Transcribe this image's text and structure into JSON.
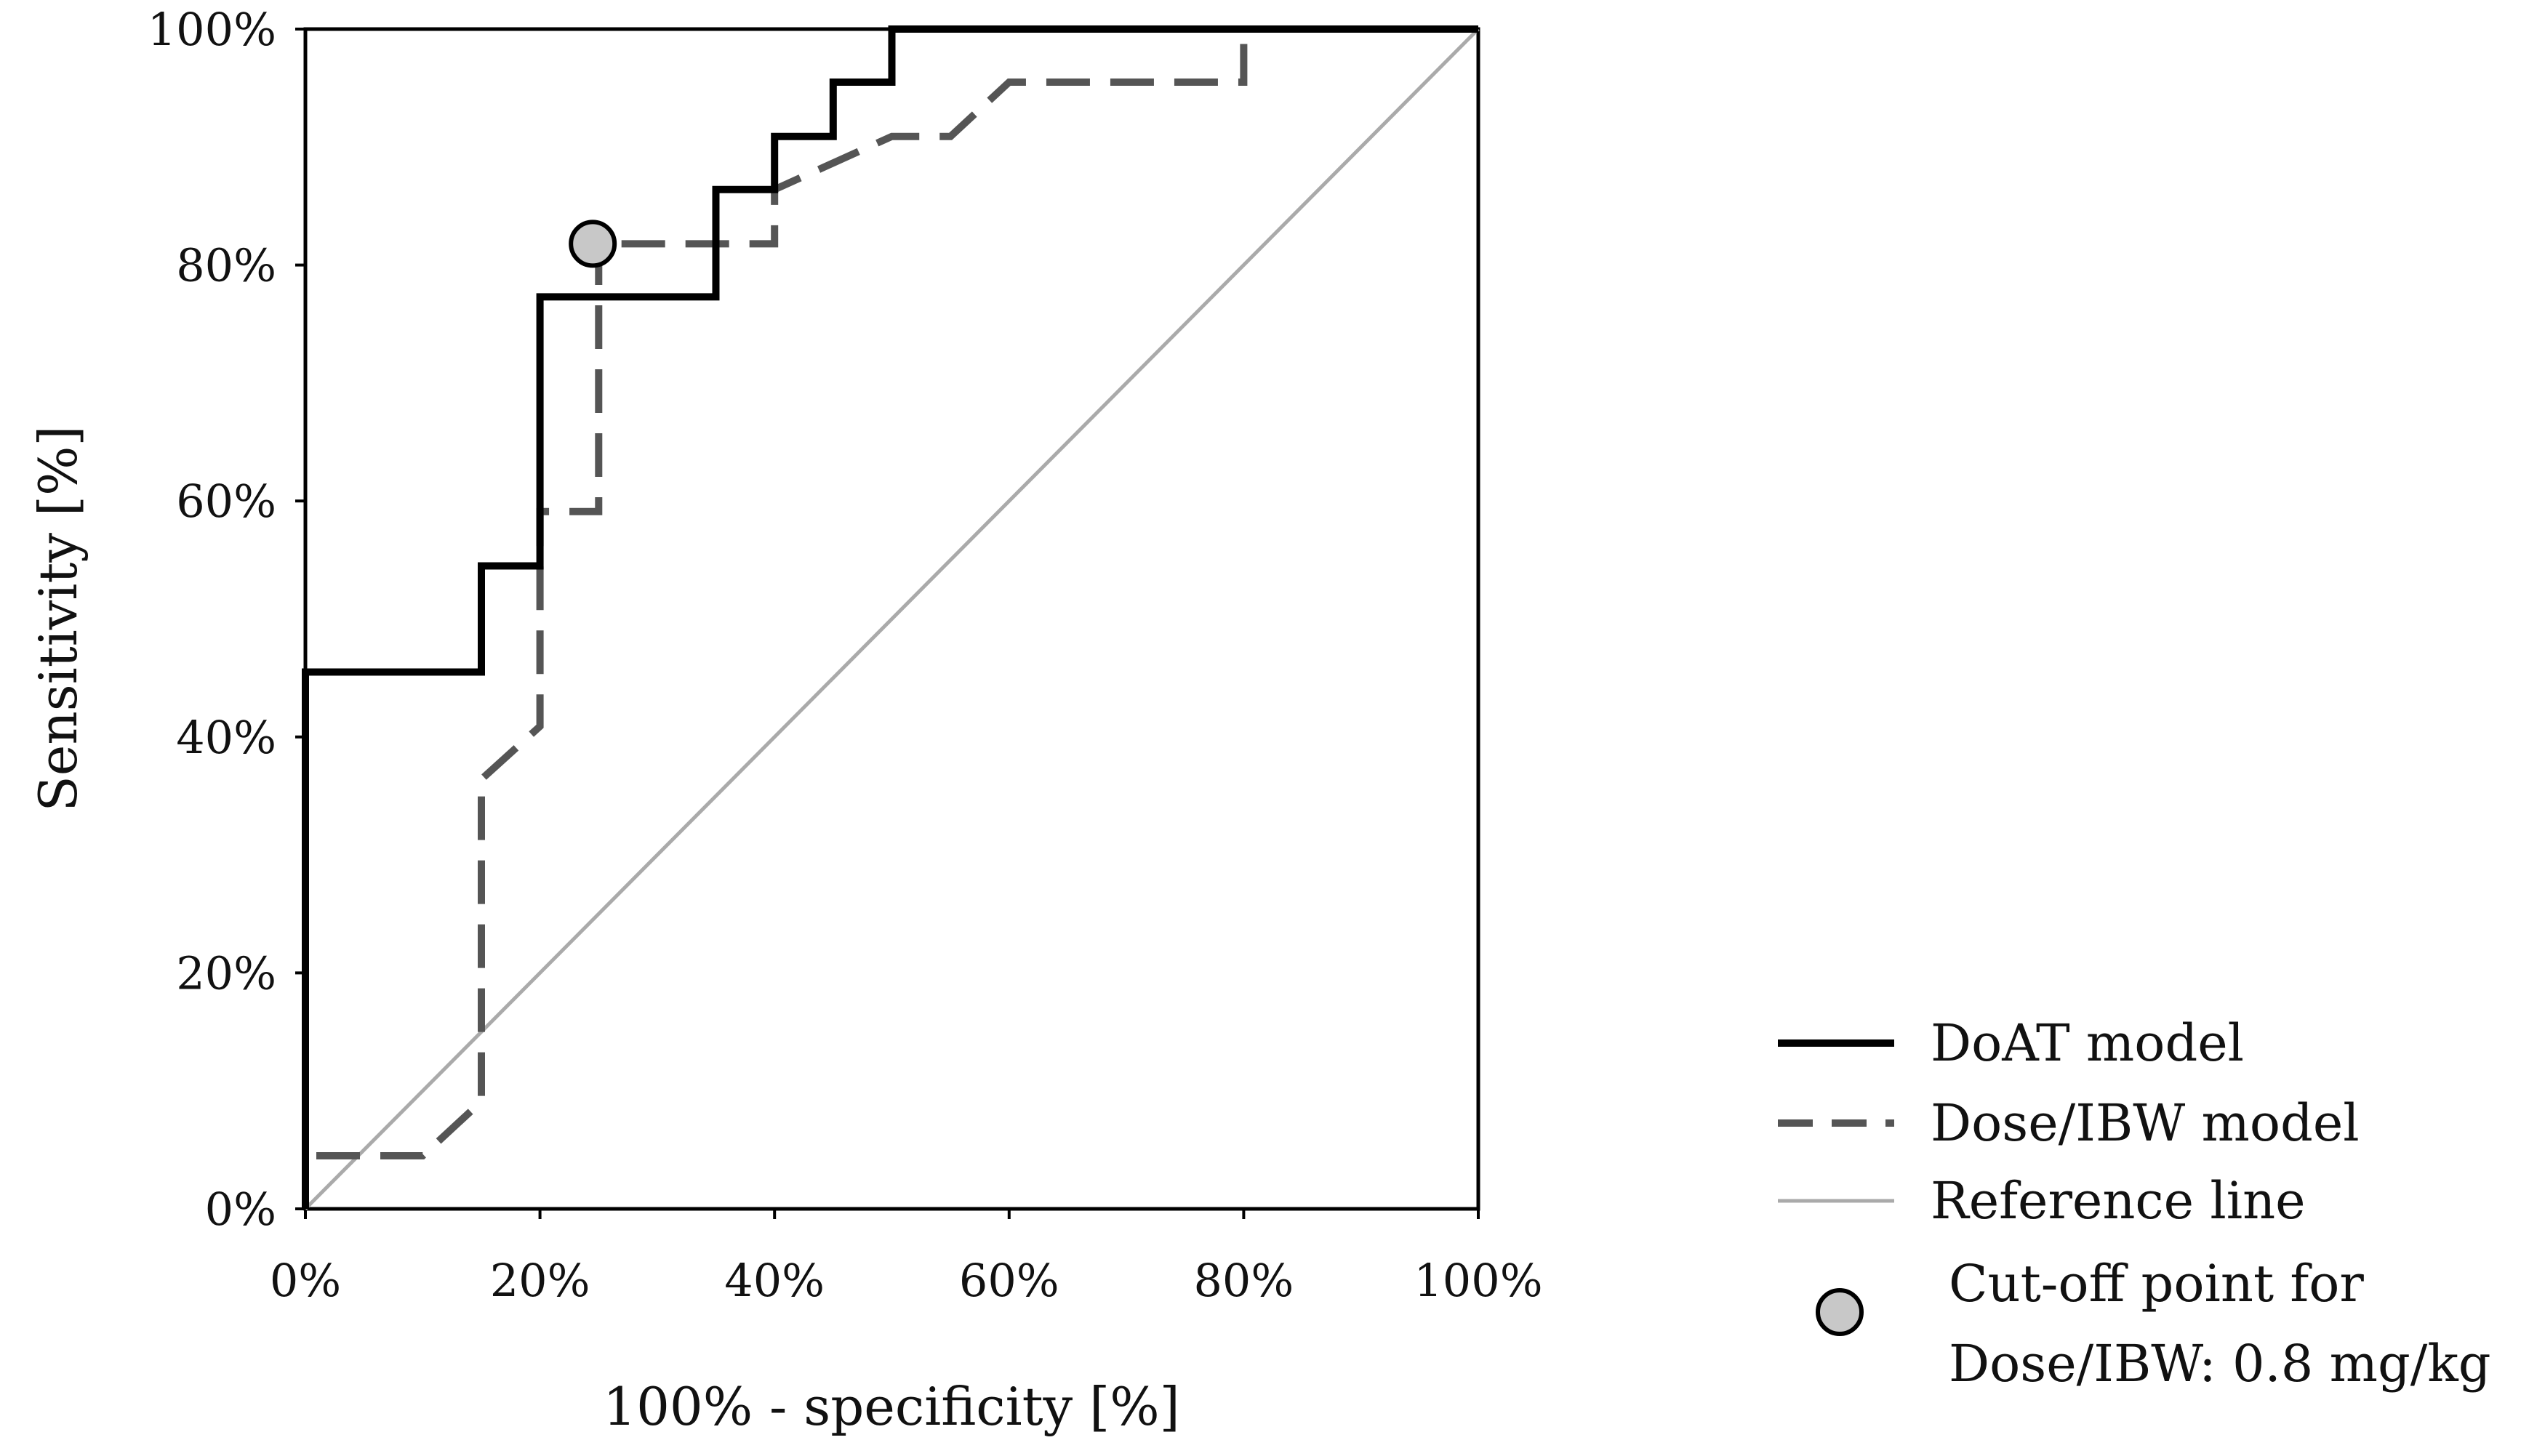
{
  "chart_data": {
    "type": "line",
    "title": "",
    "xlabel": "100% - specificity [%]",
    "ylabel": "Sensitivity [%]",
    "xlim": [
      0,
      100
    ],
    "ylim": [
      0,
      100
    ],
    "grid": false,
    "legend_position": "bottom-right outside",
    "x_ticks": [
      0,
      20,
      40,
      60,
      80,
      100
    ],
    "y_ticks": [
      0,
      20,
      40,
      60,
      80,
      100
    ],
    "x_tick_labels": [
      "0%",
      "20%",
      "40%",
      "60%",
      "80%",
      "100%"
    ],
    "y_tick_labels": [
      "0%",
      "20%",
      "40%",
      "60%",
      "80%",
      "100%"
    ],
    "series": [
      {
        "name": "DoAT model",
        "style": "solid",
        "color": "#000000",
        "x": [
          0,
          0,
          15,
          15,
          20,
          20,
          35,
          35,
          40,
          40,
          45,
          45,
          50,
          50,
          100
        ],
        "y": [
          0,
          45.5,
          45.5,
          54.5,
          54.5,
          77.3,
          77.3,
          86.4,
          86.4,
          90.9,
          90.9,
          95.5,
          95.5,
          100,
          100
        ]
      },
      {
        "name": "Dose/IBW model",
        "style": "dashed",
        "color": "#555555",
        "x": [
          0,
          0,
          10,
          15,
          15,
          20,
          20,
          25,
          25,
          40,
          40,
          50,
          55,
          60,
          80,
          80,
          100
        ],
        "y": [
          0,
          4.5,
          4.5,
          9.1,
          36.4,
          40.9,
          59.1,
          59.1,
          81.8,
          81.8,
          86.4,
          90.9,
          90.9,
          95.5,
          95.5,
          100,
          100
        ]
      },
      {
        "name": "Reference line",
        "style": "solid",
        "color": "#aaaaaa",
        "x": [
          0,
          100
        ],
        "y": [
          0,
          100
        ]
      }
    ],
    "annotations": [
      {
        "name": "Cut-off point for Dose/IBW: 0.8 mg/kg",
        "x": 24.5,
        "y": 81.8,
        "marker": "circle",
        "fill": "#c8c8c8"
      }
    ],
    "legend": [
      {
        "label": "DoAT model",
        "style": "solid",
        "color": "#000000"
      },
      {
        "label": "Dose/IBW model",
        "style": "dashed",
        "color": "#555555"
      },
      {
        "label": "Reference line",
        "style": "solid",
        "color": "#aaaaaa"
      },
      {
        "label_lines": [
          "Cut-off point for",
          "Dose/IBW: 0.8 mg/kg"
        ],
        "style": "marker",
        "color": "#c8c8c8"
      }
    ]
  }
}
